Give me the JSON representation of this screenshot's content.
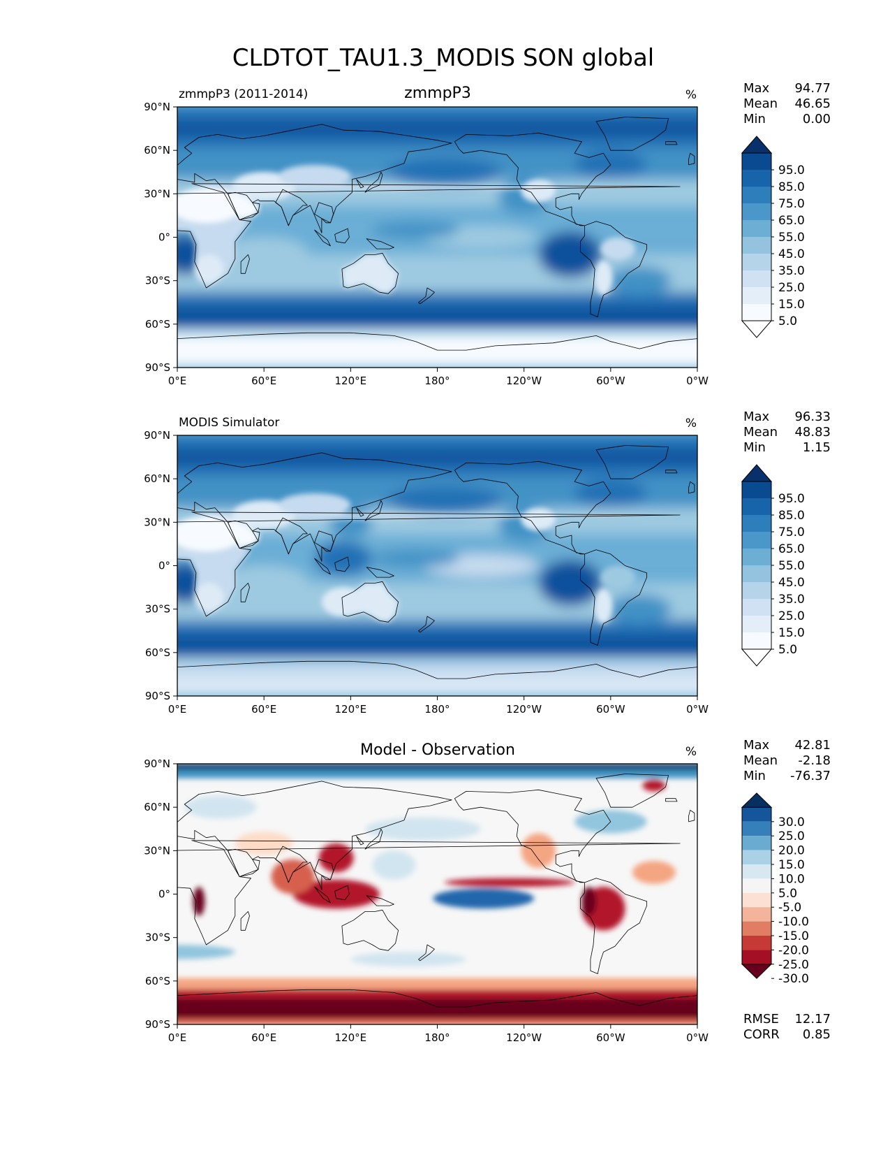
{
  "figure_title": "CLDTOT_TAU1.3_MODIS SON global",
  "colors": {
    "blues": [
      "#f7fbff",
      "#deebf7",
      "#c6dbef",
      "#9ecae1",
      "#6baed6",
      "#4292c6",
      "#2171b5",
      "#08519c",
      "#08306b"
    ],
    "diff": [
      "#67001f",
      "#b2182b",
      "#d6604d",
      "#f4a582",
      "#fddbc7",
      "#f7f7f7",
      "#d1e5f0",
      "#92c5de",
      "#4393c3",
      "#2166ac",
      "#053061"
    ],
    "coast": "#000000"
  },
  "chart_data": [
    {
      "type": "heatmap",
      "id": "test",
      "left_label": "zmmpP3 (2011-2014)",
      "center_title": "zmmpP3",
      "units": "%",
      "x_ticks": [
        "0°E",
        "60°E",
        "120°E",
        "180°",
        "120°W",
        "60°W",
        "0°W"
      ],
      "y_ticks": [
        "90°N",
        "60°N",
        "30°N",
        "0°",
        "30°S",
        "60°S",
        "90°S"
      ],
      "xlim": [
        0,
        360
      ],
      "ylim": [
        -90,
        90
      ],
      "stats": [
        {
          "label": "Max",
          "value": "94.77"
        },
        {
          "label": "Mean",
          "value": "46.65"
        },
        {
          "label": "Min",
          "value": "0.00"
        }
      ],
      "colorbar_ticks": [
        "95.0",
        "85.0",
        "75.0",
        "65.0",
        "55.0",
        "45.0",
        "35.0",
        "25.0",
        "15.0",
        "5.0"
      ],
      "colorbar_levels": [
        0,
        5,
        15,
        25,
        35,
        45,
        55,
        65,
        75,
        85,
        95,
        100
      ],
      "extra_stats": []
    },
    {
      "type": "heatmap",
      "id": "ref",
      "left_label": "MODIS Simulator",
      "center_title": "",
      "units": "%",
      "x_ticks": [
        "0°E",
        "60°E",
        "120°E",
        "180°",
        "120°W",
        "60°W",
        "0°W"
      ],
      "y_ticks": [
        "90°N",
        "60°N",
        "30°N",
        "0°",
        "30°S",
        "60°S",
        "90°S"
      ],
      "xlim": [
        0,
        360
      ],
      "ylim": [
        -90,
        90
      ],
      "stats": [
        {
          "label": "Max",
          "value": "96.33"
        },
        {
          "label": "Mean",
          "value": "48.83"
        },
        {
          "label": "Min",
          "value": "1.15"
        }
      ],
      "colorbar_ticks": [
        "95.0",
        "85.0",
        "75.0",
        "65.0",
        "55.0",
        "45.0",
        "35.0",
        "25.0",
        "15.0",
        "5.0"
      ],
      "colorbar_levels": [
        0,
        5,
        15,
        25,
        35,
        45,
        55,
        65,
        75,
        85,
        95,
        100
      ],
      "extra_stats": []
    },
    {
      "type": "heatmap",
      "id": "diff",
      "left_label": "",
      "center_title": "Model - Observation",
      "units": "%",
      "x_ticks": [
        "0°E",
        "60°E",
        "120°E",
        "180°",
        "120°W",
        "60°W",
        "0°W"
      ],
      "y_ticks": [
        "90°N",
        "60°N",
        "30°N",
        "0°",
        "30°S",
        "60°S",
        "90°S"
      ],
      "xlim": [
        0,
        360
      ],
      "ylim": [
        -90,
        90
      ],
      "stats": [
        {
          "label": "Max",
          "value": "42.81"
        },
        {
          "label": "Mean",
          "value": "-2.18"
        },
        {
          "label": "Min",
          "value": "-76.37"
        }
      ],
      "colorbar_ticks": [
        "30.0",
        "25.0",
        "20.0",
        "15.0",
        "10.0",
        "5.0",
        "-5.0",
        "-10.0",
        "-15.0",
        "-20.0",
        "-25.0",
        "-30.0"
      ],
      "colorbar_levels": [
        -35,
        -30,
        -25,
        -20,
        -15,
        -10,
        -5,
        5,
        10,
        15,
        20,
        25,
        30,
        35
      ],
      "extra_stats": [
        {
          "label": "RMSE",
          "value": "12.17"
        },
        {
          "label": "CORR",
          "value": "0.85"
        }
      ]
    }
  ]
}
